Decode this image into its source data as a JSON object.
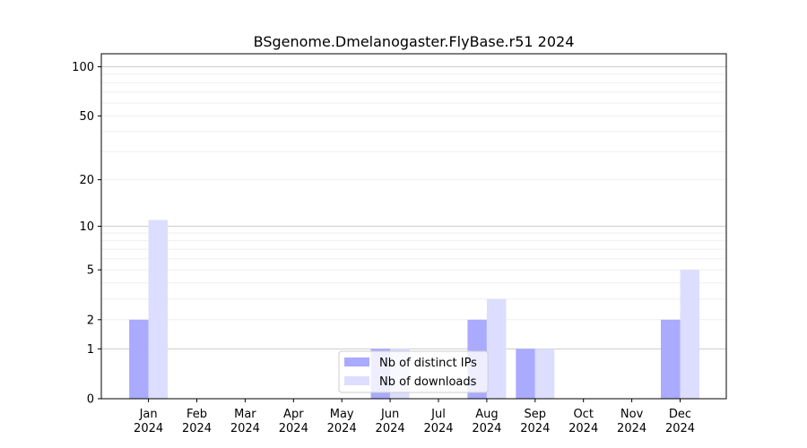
{
  "chart_data": {
    "type": "bar",
    "title": "BSgenome.Dmelanogaster.FlyBase.r51 2024",
    "xlabel": "",
    "ylabel": "",
    "y_scale": "log1p",
    "ylim": [
      0,
      120
    ],
    "y_ticks": [
      0,
      1,
      2,
      5,
      10,
      20,
      50,
      100
    ],
    "grid": true,
    "legend_position": "bottom-center",
    "categories": [
      "Jan\n2024",
      "Feb\n2024",
      "Mar\n2024",
      "Apr\n2024",
      "May\n2024",
      "Jun\n2024",
      "Jul\n2024",
      "Aug\n2024",
      "Sep\n2024",
      "Oct\n2024",
      "Nov\n2024",
      "Dec\n2024"
    ],
    "series": [
      {
        "name": "Nb of distinct IPs",
        "color": "#aaaaff",
        "values": [
          2,
          0,
          0,
          0,
          0,
          1,
          0,
          2,
          1,
          0,
          0,
          2
        ]
      },
      {
        "name": "Nb of downloads",
        "color": "#ddddff",
        "values": [
          11,
          0,
          0,
          0,
          0,
          1,
          0,
          3,
          1,
          0,
          0,
          5
        ]
      }
    ]
  }
}
